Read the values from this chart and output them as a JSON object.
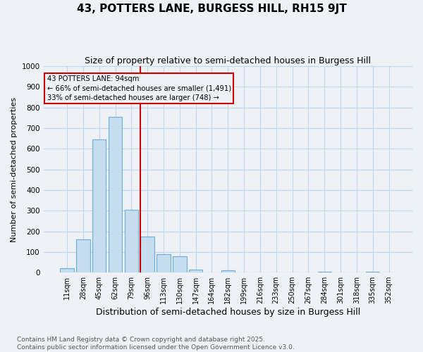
{
  "title": "43, POTTERS LANE, BURGESS HILL, RH15 9JT",
  "subtitle": "Size of property relative to semi-detached houses in Burgess Hill",
  "xlabel": "Distribution of semi-detached houses by size in Burgess Hill",
  "ylabel": "Number of semi-detached properties",
  "categories": [
    "11sqm",
    "28sqm",
    "45sqm",
    "62sqm",
    "79sqm",
    "96sqm",
    "113sqm",
    "130sqm",
    "147sqm",
    "164sqm",
    "182sqm",
    "199sqm",
    "216sqm",
    "233sqm",
    "250sqm",
    "267sqm",
    "284sqm",
    "301sqm",
    "318sqm",
    "335sqm",
    "352sqm"
  ],
  "values": [
    20,
    160,
    645,
    755,
    305,
    175,
    90,
    78,
    15,
    0,
    10,
    0,
    0,
    0,
    0,
    0,
    5,
    0,
    0,
    5,
    0
  ],
  "bar_color": "#c5ddef",
  "bar_edge_color": "#6aaed6",
  "vline_index": 5,
  "vline_color": "#cc0000",
  "annotation_title": "43 POTTERS LANE: 94sqm",
  "annotation_line1": "← 66% of semi-detached houses are smaller (1,491)",
  "annotation_line2": "33% of semi-detached houses are larger (748) →",
  "annotation_box_color": "#cc0000",
  "ylim": [
    0,
    1000
  ],
  "yticks": [
    0,
    100,
    200,
    300,
    400,
    500,
    600,
    700,
    800,
    900,
    1000
  ],
  "footer1": "Contains HM Land Registry data © Crown copyright and database right 2025.",
  "footer2": "Contains public sector information licensed under the Open Government Licence v3.0.",
  "bg_color": "#eef2f7",
  "grid_color": "#c5d5e8",
  "title_fontsize": 11,
  "subtitle_fontsize": 9,
  "xlabel_fontsize": 9,
  "ylabel_fontsize": 8,
  "tick_fontsize": 7,
  "footer_fontsize": 6.5
}
